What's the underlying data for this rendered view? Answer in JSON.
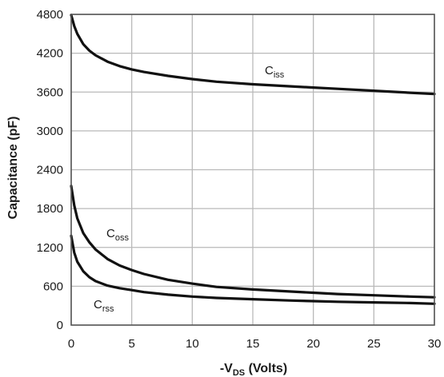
{
  "chart_data": {
    "type": "line",
    "xlabel": {
      "prefix": "-V",
      "sub": "DS",
      "suffix": " (Volts)"
    },
    "ylabel": "Capacitance (pF)",
    "xlim": [
      0,
      30
    ],
    "ylim": [
      0,
      4800
    ],
    "xticks": [
      0,
      5,
      10,
      15,
      20,
      25,
      30
    ],
    "yticks": [
      0,
      600,
      1200,
      1800,
      2400,
      3000,
      3600,
      4200,
      4800
    ],
    "grid": true,
    "legend": "none",
    "series": [
      {
        "name": "Ciss",
        "label_main": "C",
        "label_sub": "iss",
        "x": [
          0,
          0.25,
          0.5,
          1,
          1.5,
          2,
          3,
          4,
          5,
          6,
          8,
          10,
          12,
          15,
          18,
          20,
          22,
          25,
          28,
          30
        ],
        "y": [
          4790,
          4620,
          4500,
          4340,
          4240,
          4170,
          4070,
          4000,
          3950,
          3910,
          3850,
          3800,
          3760,
          3720,
          3690,
          3670,
          3650,
          3620,
          3590,
          3570
        ]
      },
      {
        "name": "Coss",
        "label_main": "C",
        "label_sub": "oss",
        "x": [
          0,
          0.25,
          0.5,
          1,
          1.5,
          2,
          3,
          4,
          5,
          6,
          8,
          10,
          12,
          15,
          18,
          20,
          22,
          25,
          28,
          30
        ],
        "y": [
          2150,
          1850,
          1650,
          1420,
          1280,
          1170,
          1020,
          920,
          850,
          790,
          700,
          640,
          590,
          550,
          520,
          500,
          480,
          460,
          440,
          430
        ]
      },
      {
        "name": "Crss",
        "label_main": "C",
        "label_sub": "rss",
        "x": [
          0,
          0.25,
          0.5,
          1,
          1.5,
          2,
          3,
          4,
          5,
          6,
          8,
          10,
          12,
          15,
          18,
          20,
          22,
          25,
          28,
          30
        ],
        "y": [
          1380,
          1120,
          980,
          830,
          740,
          680,
          610,
          570,
          540,
          510,
          470,
          440,
          420,
          400,
          380,
          370,
          360,
          350,
          340,
          330
        ]
      }
    ]
  }
}
